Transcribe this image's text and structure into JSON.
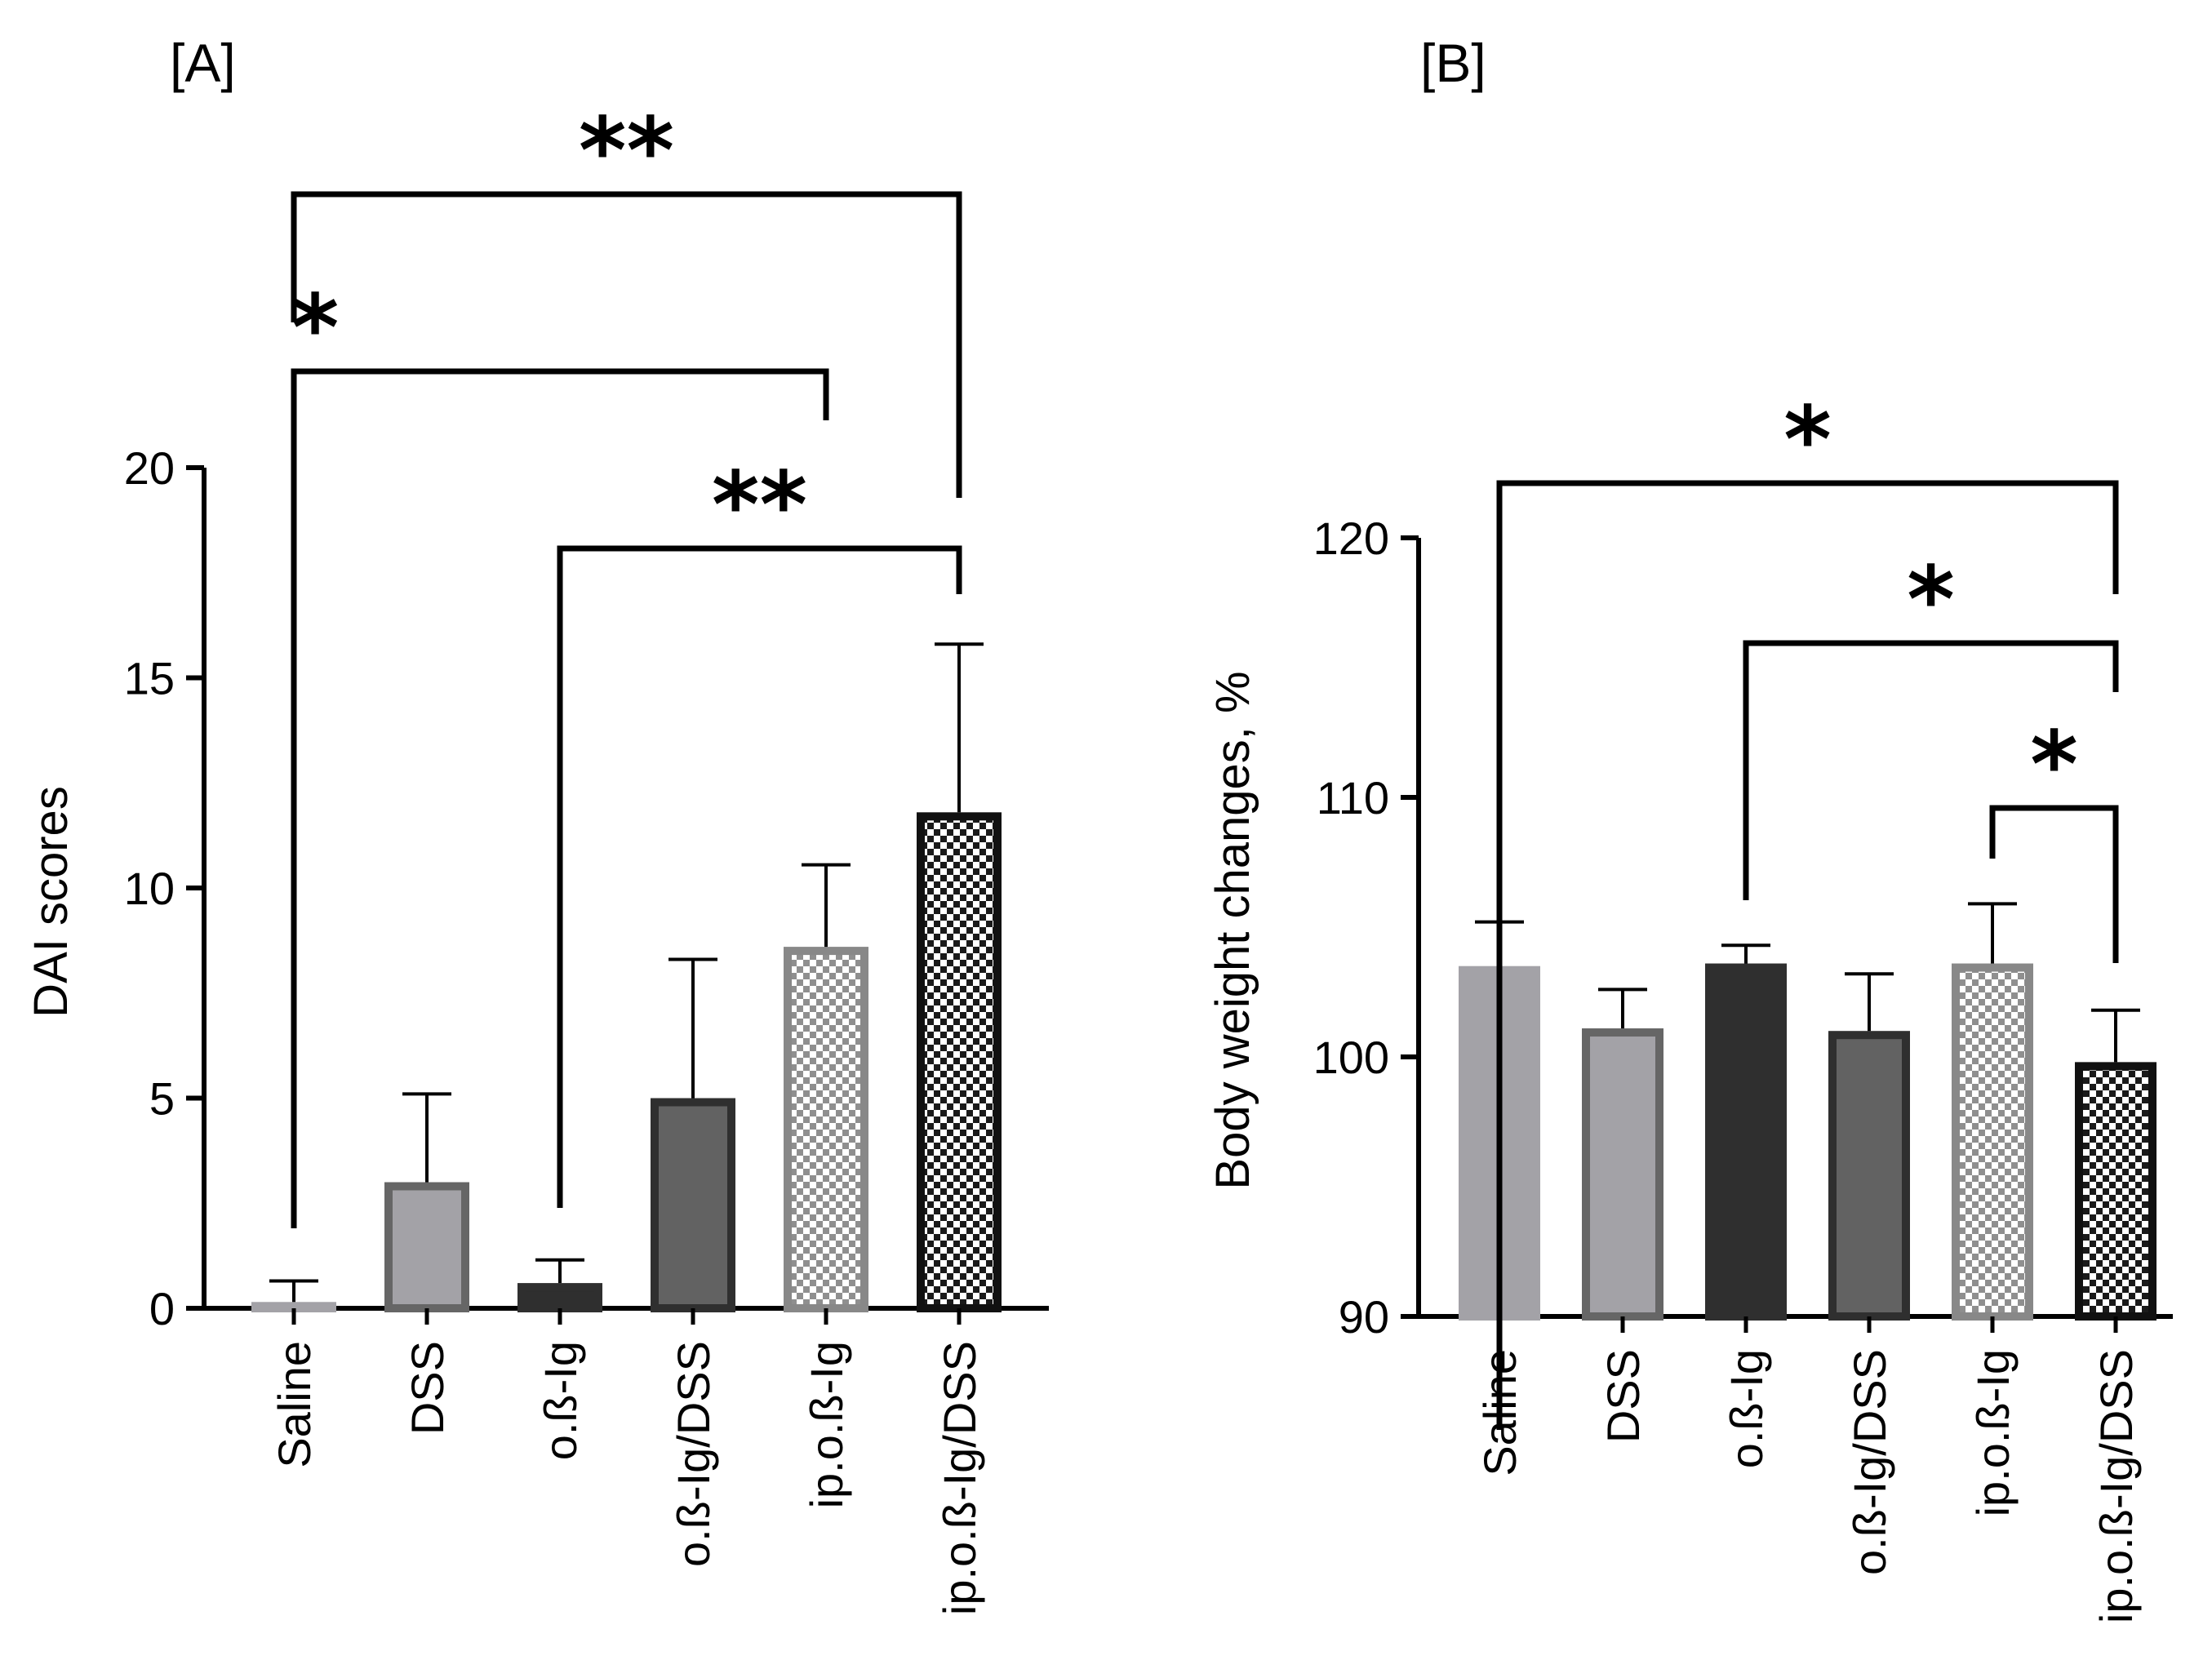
{
  "chart_data": [
    {
      "panel": "[A]",
      "type": "bar",
      "ylabel": "DAI scores",
      "xlabel": "",
      "ylim": [
        0,
        20
      ],
      "yticks": [
        0,
        5,
        10,
        15,
        20
      ],
      "categories": [
        "Saline",
        "DSS",
        "o.ß-Ig",
        "o.ß-Ig/DSS",
        "ip.o.ß-Ig",
        "ip.o.ß-Ig/DSS"
      ],
      "values": [
        0.15,
        3.0,
        0.6,
        5.0,
        8.6,
        11.8
      ],
      "errors": [
        0.5,
        2.1,
        0.55,
        3.3,
        1.95,
        4.0
      ],
      "fills": [
        "#a3a2a7",
        "#a3a2a7",
        "#2f2f2f",
        "#626262",
        "checker-light",
        "checker-dark"
      ],
      "strokes": [
        "#a3a2a7",
        "#666666",
        "#2f2f2f",
        "#2f2f2f",
        "#888888",
        "#111111"
      ],
      "significance": [
        {
          "from": 0,
          "to": 5,
          "label": "**"
        },
        {
          "from": 0,
          "to": 4,
          "label": "*"
        },
        {
          "from": 2,
          "to": 5,
          "label": "**"
        }
      ]
    },
    {
      "panel": "[B]",
      "type": "bar",
      "ylabel": "Body weight changes, %",
      "xlabel": "",
      "ylim": [
        90,
        120
      ],
      "yticks": [
        90,
        100,
        110,
        120
      ],
      "categories": [
        "Saline",
        "DSS",
        "o.ß-Ig",
        "o.ß-Ig/DSS",
        "ip.o.ß-Ig",
        "ip.o.ß-Ig/DSS"
      ],
      "values": [
        103.5,
        101.1,
        103.6,
        101.0,
        103.6,
        99.8
      ],
      "errors": [
        1.7,
        1.5,
        0.7,
        2.2,
        2.3,
        2.0
      ],
      "fills": [
        "#a3a2a7",
        "#a3a2a7",
        "#2f2f2f",
        "#626262",
        "checker-light",
        "checker-dark"
      ],
      "strokes": [
        "#a3a2a7",
        "#666666",
        "#2f2f2f",
        "#2f2f2f",
        "#888888",
        "#111111"
      ],
      "significance": [
        {
          "from": 0,
          "to": 5,
          "label": "*"
        },
        {
          "from": 2,
          "to": 5,
          "label": "*"
        },
        {
          "from": 4,
          "to": 5,
          "label": "*"
        }
      ]
    }
  ]
}
